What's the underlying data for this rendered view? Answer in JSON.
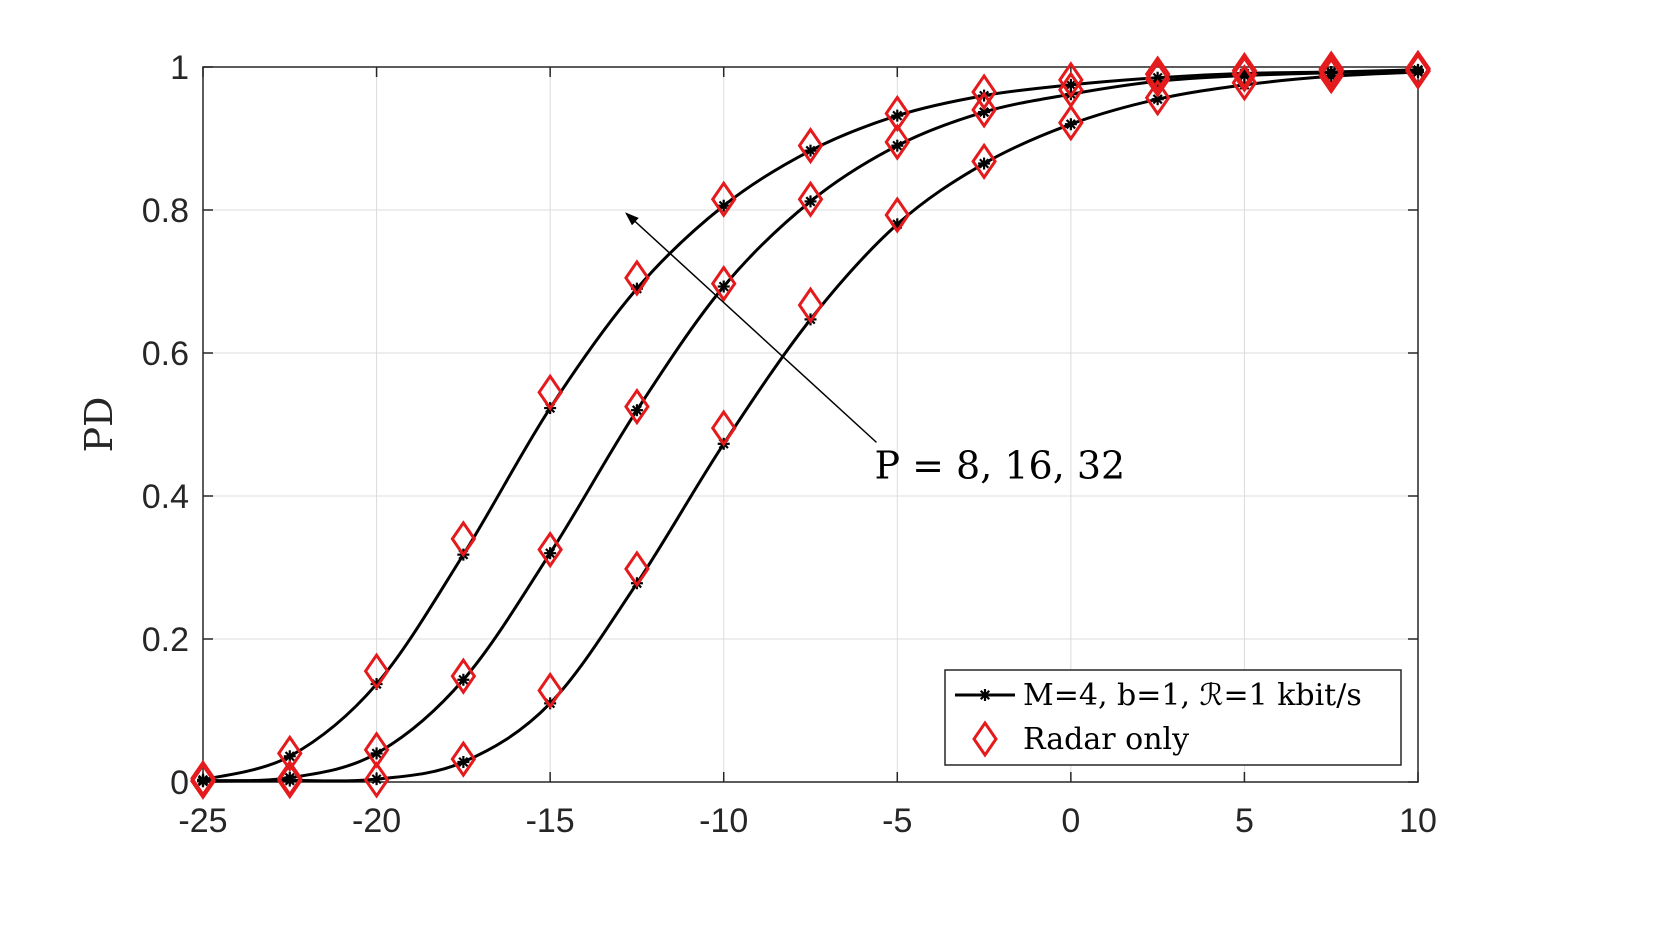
{
  "chart_data": {
    "type": "line",
    "title": "",
    "xlabel": "",
    "ylabel": "PD",
    "xlim": [
      -25,
      10
    ],
    "ylim": [
      0,
      1
    ],
    "xticks": [
      "-25",
      "-20",
      "-15",
      "-10",
      "-5",
      "0",
      "5",
      "10"
    ],
    "yticks": [
      "0",
      "0.2",
      "0.4",
      "0.6",
      "0.8",
      "1"
    ],
    "grid": true,
    "legend_position": "bottom-right",
    "x": [
      -25,
      -22.5,
      -20,
      -17.5,
      -15,
      -12.5,
      -10,
      -7.5,
      -5,
      -2.5,
      0,
      2.5,
      5,
      7.5,
      10
    ],
    "series": [
      {
        "name": "M=4, b=1, ℛ=1 kbit/s",
        "group": "P=32",
        "style": "line-star",
        "color": "#000000",
        "values": [
          0.003,
          0.036,
          0.137,
          0.318,
          0.523,
          0.69,
          0.806,
          0.883,
          0.932,
          0.96,
          0.975,
          0.985,
          0.991,
          0.993,
          0.996
        ]
      },
      {
        "name": "M=4, b=1, ℛ=1 kbit/s",
        "group": "P=16",
        "style": "line-star",
        "color": "#000000",
        "values": [
          0.002,
          0.006,
          0.04,
          0.143,
          0.32,
          0.52,
          0.693,
          0.812,
          0.89,
          0.937,
          0.962,
          0.98,
          0.988,
          0.992,
          0.995
        ]
      },
      {
        "name": "M=4, b=1, ℛ=1 kbit/s",
        "group": "P=8",
        "style": "line-star",
        "color": "#000000",
        "values": [
          0.001,
          0.002,
          0.004,
          0.028,
          0.11,
          0.278,
          0.473,
          0.647,
          0.78,
          0.865,
          0.92,
          0.955,
          0.975,
          0.987,
          0.993
        ]
      },
      {
        "name": "Radar only",
        "group": "P=32",
        "style": "diamond",
        "color": "#e41a1c",
        "values": [
          0.005,
          0.04,
          0.155,
          0.34,
          0.545,
          0.705,
          0.815,
          0.89,
          0.935,
          0.965,
          0.982,
          0.99,
          0.995,
          0.997,
          0.998
        ]
      },
      {
        "name": "Radar only",
        "group": "P=16",
        "style": "diamond",
        "color": "#e41a1c",
        "values": [
          0.002,
          0.005,
          0.045,
          0.148,
          0.325,
          0.525,
          0.697,
          0.815,
          0.895,
          0.94,
          0.968,
          0.983,
          0.99,
          0.994,
          0.996
        ]
      },
      {
        "name": "Radar only",
        "group": "P=8",
        "style": "diamond",
        "color": "#e41a1c",
        "values": [
          0.001,
          0.002,
          0.003,
          0.032,
          0.128,
          0.298,
          0.495,
          0.667,
          0.793,
          0.868,
          0.922,
          0.957,
          0.978,
          0.988,
          0.994
        ]
      }
    ],
    "legend": [
      {
        "label": "M=4, b=1, ℛ=1 kbit/s",
        "style": "line-star"
      },
      {
        "label": "Radar only",
        "style": "diamond"
      }
    ],
    "annotation": {
      "text": "P = 8, 16, 32",
      "arrow_from": [
        -5.6,
        0.475
      ],
      "arrow_to": [
        -12.8,
        0.795
      ]
    }
  }
}
